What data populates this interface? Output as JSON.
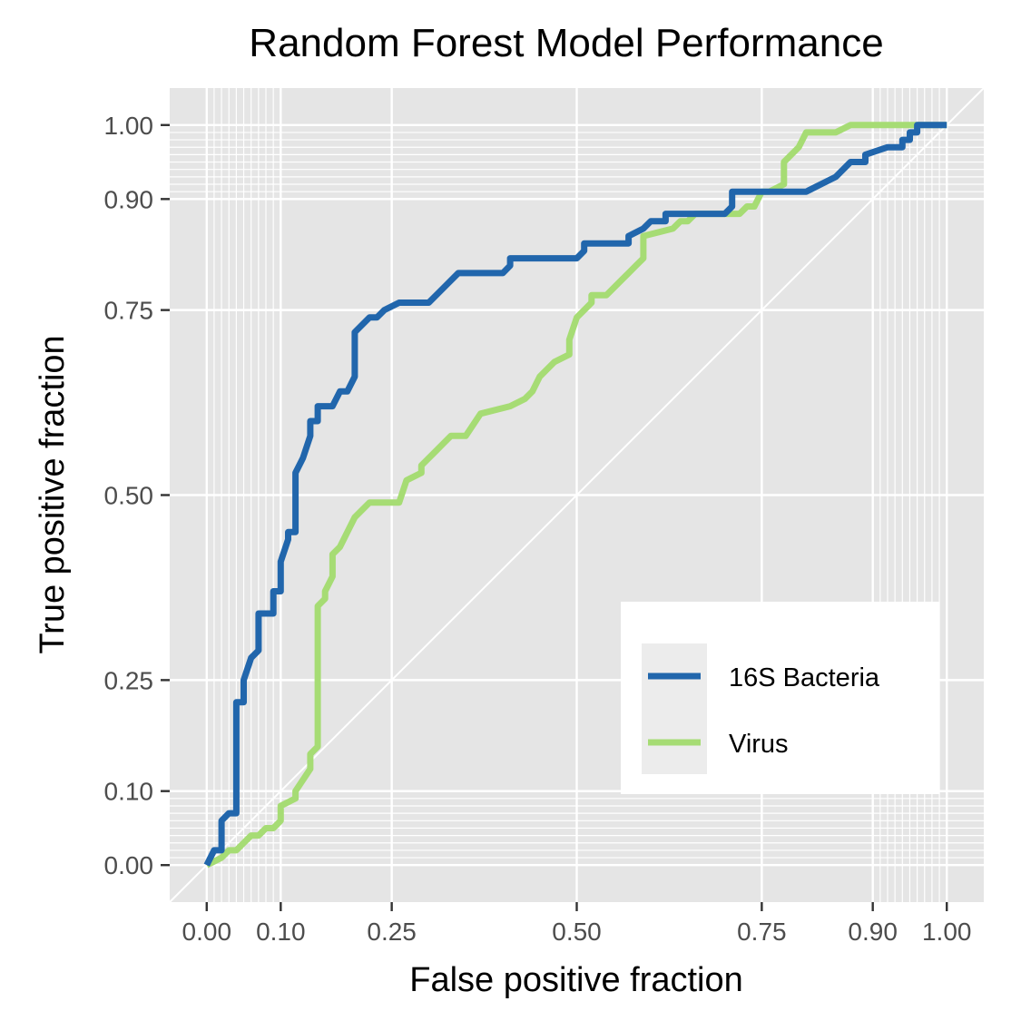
{
  "chart_data": {
    "type": "line",
    "title": "Random Forest Model Performance",
    "xlabel": "False positive fraction",
    "ylabel": "True positive fraction",
    "xlim": [
      -0.05,
      1.05
    ],
    "ylim": [
      -0.05,
      1.05
    ],
    "x_ticks": [
      0.0,
      0.1,
      0.25,
      0.5,
      0.75,
      0.9,
      1.0
    ],
    "x_tick_labels": [
      "0.00",
      "0.10",
      "0.25",
      "0.50",
      "0.75",
      "0.90",
      "1.00"
    ],
    "y_ticks": [
      0.0,
      0.1,
      0.25,
      0.5,
      0.75,
      0.9,
      1.0
    ],
    "y_tick_labels": [
      "0.00",
      "0.10",
      "0.25",
      "0.50",
      "0.75",
      "0.90",
      "1.00"
    ],
    "minor_grid": [
      0.01,
      0.02,
      0.03,
      0.04,
      0.05,
      0.06,
      0.07,
      0.08,
      0.09,
      0.91,
      0.92,
      0.93,
      0.94,
      0.95,
      0.96,
      0.97,
      0.98,
      0.99
    ],
    "reference_line": [
      [
        -0.05,
        -0.05
      ],
      [
        1.05,
        1.05
      ]
    ],
    "grid": true,
    "legend_position": "bottom-right",
    "colors": {
      "panel": "#e5e5e5",
      "grid": "#ffffff",
      "text_axis": "#4d4d4d"
    },
    "series": [
      {
        "name": "16S Bacteria",
        "color": "#2166ac",
        "x": [
          0.0,
          0.01,
          0.02,
          0.02,
          0.03,
          0.04,
          0.04,
          0.05,
          0.05,
          0.06,
          0.07,
          0.07,
          0.09,
          0.09,
          0.1,
          0.1,
          0.11,
          0.11,
          0.12,
          0.12,
          0.13,
          0.14,
          0.14,
          0.15,
          0.15,
          0.16,
          0.17,
          0.18,
          0.19,
          0.2,
          0.2,
          0.21,
          0.22,
          0.23,
          0.24,
          0.26,
          0.28,
          0.3,
          0.32,
          0.34,
          0.36,
          0.38,
          0.4,
          0.41,
          0.41,
          0.44,
          0.47,
          0.5,
          0.51,
          0.51,
          0.54,
          0.57,
          0.57,
          0.59,
          0.6,
          0.62,
          0.62,
          0.67,
          0.7,
          0.71,
          0.71,
          0.77,
          0.81,
          0.83,
          0.85,
          0.87,
          0.88,
          0.89,
          0.89,
          0.92,
          0.94,
          0.94,
          0.95,
          0.95,
          0.96,
          0.96,
          1.0
        ],
        "y": [
          0.0,
          0.02,
          0.02,
          0.06,
          0.07,
          0.07,
          0.22,
          0.22,
          0.25,
          0.28,
          0.29,
          0.34,
          0.34,
          0.37,
          0.37,
          0.41,
          0.44,
          0.45,
          0.45,
          0.53,
          0.55,
          0.58,
          0.6,
          0.6,
          0.62,
          0.62,
          0.62,
          0.64,
          0.64,
          0.66,
          0.72,
          0.73,
          0.74,
          0.74,
          0.75,
          0.76,
          0.76,
          0.76,
          0.78,
          0.8,
          0.8,
          0.8,
          0.8,
          0.81,
          0.82,
          0.82,
          0.82,
          0.82,
          0.83,
          0.84,
          0.84,
          0.84,
          0.85,
          0.86,
          0.87,
          0.87,
          0.88,
          0.88,
          0.88,
          0.89,
          0.91,
          0.91,
          0.91,
          0.92,
          0.93,
          0.95,
          0.95,
          0.95,
          0.96,
          0.97,
          0.97,
          0.98,
          0.98,
          0.99,
          0.99,
          1.0,
          1.0
        ]
      },
      {
        "name": "Virus",
        "color": "#a6dc74",
        "x": [
          0.0,
          0.02,
          0.03,
          0.04,
          0.05,
          0.06,
          0.07,
          0.08,
          0.09,
          0.1,
          0.1,
          0.12,
          0.12,
          0.14,
          0.14,
          0.15,
          0.15,
          0.16,
          0.16,
          0.17,
          0.17,
          0.18,
          0.19,
          0.2,
          0.22,
          0.25,
          0.26,
          0.27,
          0.29,
          0.29,
          0.31,
          0.32,
          0.33,
          0.35,
          0.37,
          0.41,
          0.43,
          0.44,
          0.45,
          0.47,
          0.49,
          0.49,
          0.5,
          0.51,
          0.52,
          0.52,
          0.54,
          0.56,
          0.57,
          0.58,
          0.59,
          0.59,
          0.63,
          0.64,
          0.65,
          0.66,
          0.67,
          0.7,
          0.72,
          0.73,
          0.74,
          0.75,
          0.76,
          0.78,
          0.78,
          0.8,
          0.81,
          0.81,
          0.83,
          0.85,
          0.87,
          0.87,
          0.9,
          0.93,
          0.96,
          1.0
        ],
        "y": [
          0.0,
          0.01,
          0.02,
          0.02,
          0.03,
          0.04,
          0.04,
          0.05,
          0.05,
          0.06,
          0.08,
          0.09,
          0.1,
          0.13,
          0.15,
          0.16,
          0.35,
          0.36,
          0.37,
          0.39,
          0.42,
          0.43,
          0.45,
          0.47,
          0.49,
          0.49,
          0.49,
          0.52,
          0.53,
          0.54,
          0.56,
          0.57,
          0.58,
          0.58,
          0.61,
          0.62,
          0.63,
          0.64,
          0.66,
          0.68,
          0.69,
          0.71,
          0.74,
          0.75,
          0.76,
          0.77,
          0.77,
          0.79,
          0.8,
          0.81,
          0.82,
          0.85,
          0.86,
          0.87,
          0.87,
          0.88,
          0.88,
          0.88,
          0.88,
          0.89,
          0.89,
          0.91,
          0.91,
          0.92,
          0.95,
          0.97,
          0.99,
          0.99,
          0.99,
          0.99,
          1.0,
          1.0,
          1.0,
          1.0,
          1.0,
          1.0
        ]
      }
    ]
  }
}
